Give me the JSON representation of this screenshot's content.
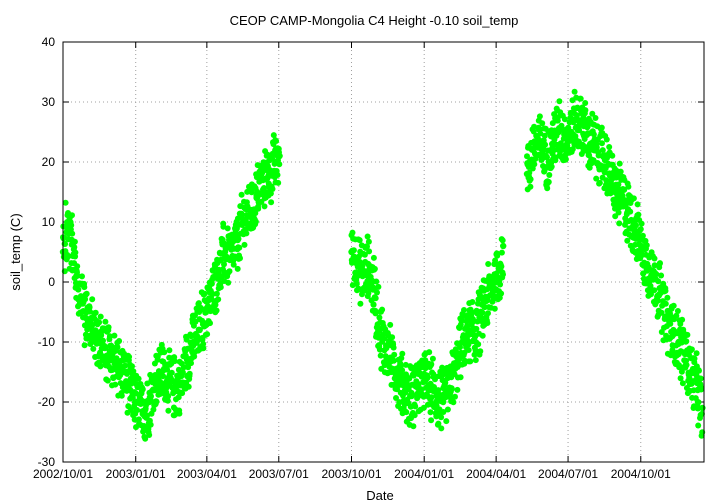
{
  "chart_data": {
    "type": "scatter",
    "title": "CEOP CAMP-Mongolia C4 Height -0.10 soil_temp",
    "xlabel": "Date",
    "ylabel": "soil_temp (C)",
    "xlim": [
      "2002-10-01",
      "2004-12-20"
    ],
    "ylim": [
      -30,
      40
    ],
    "yticks": [
      -30,
      -20,
      -10,
      0,
      10,
      20,
      30,
      40
    ],
    "xticks": [
      "2002/10/01",
      "2003/01/01",
      "2003/04/01",
      "2003/07/01",
      "2003/10/01",
      "2004/01/01",
      "2004/04/01",
      "2004/07/01",
      "2004/10/01"
    ],
    "grid": true,
    "color": "#00ff00",
    "series": [
      {
        "values": [
          [
            "2002-10-01",
            5
          ],
          [
            "2002-10-06",
            9
          ],
          [
            "2002-10-12",
            7
          ],
          [
            "2002-10-18",
            1
          ],
          [
            "2002-10-24",
            -3
          ],
          [
            "2002-10-30",
            -6
          ],
          [
            "2002-11-07",
            -8
          ],
          [
            "2002-11-15",
            -10
          ],
          [
            "2002-11-23",
            -11
          ],
          [
            "2002-12-01",
            -13
          ],
          [
            "2002-12-09",
            -14
          ],
          [
            "2002-12-17",
            -15
          ],
          [
            "2002-12-25",
            -18
          ],
          [
            "2003-01-02",
            -20
          ],
          [
            "2003-01-10",
            -22
          ],
          [
            "2003-01-18",
            -20
          ],
          [
            "2003-01-26",
            -17
          ],
          [
            "2003-02-03",
            -15
          ],
          [
            "2003-02-11",
            -16
          ],
          [
            "2003-02-19",
            -18
          ],
          [
            "2003-02-27",
            -17
          ],
          [
            "2003-03-07",
            -13
          ],
          [
            "2003-03-15",
            -10
          ],
          [
            "2003-03-23",
            -8
          ],
          [
            "2003-03-31",
            -5
          ],
          [
            "2003-04-08",
            -2
          ],
          [
            "2003-04-16",
            2
          ],
          [
            "2003-04-24",
            5
          ],
          [
            "2003-05-02",
            4
          ],
          [
            "2003-05-10",
            7
          ],
          [
            "2003-05-18",
            10
          ],
          [
            "2003-05-26",
            12
          ],
          [
            "2003-06-03",
            14
          ],
          [
            "2003-06-11",
            17
          ],
          [
            "2003-06-19",
            18
          ],
          [
            "2003-06-27",
            20
          ],
          [
            "2003-07-02",
            21
          ]
        ]
      },
      {
        "values": [
          [
            "2003-10-01",
            5
          ],
          [
            "2003-10-08",
            3
          ],
          [
            "2003-10-15",
            1
          ],
          [
            "2003-10-22",
            3
          ],
          [
            "2003-10-29",
            -1
          ],
          [
            "2003-11-06",
            -8
          ],
          [
            "2003-11-14",
            -11
          ],
          [
            "2003-11-22",
            -13
          ],
          [
            "2003-11-30",
            -16
          ],
          [
            "2003-12-08",
            -18
          ],
          [
            "2003-12-16",
            -19
          ],
          [
            "2003-12-24",
            -17
          ],
          [
            "2004-01-01",
            -16
          ],
          [
            "2004-01-09",
            -17
          ],
          [
            "2004-01-17",
            -19
          ],
          [
            "2004-01-25",
            -20
          ],
          [
            "2004-02-02",
            -18
          ],
          [
            "2004-02-10",
            -14
          ],
          [
            "2004-02-18",
            -10
          ],
          [
            "2004-02-26",
            -8
          ],
          [
            "2004-03-05",
            -9
          ],
          [
            "2004-03-13",
            -6
          ],
          [
            "2004-03-21",
            -3
          ],
          [
            "2004-03-29",
            0
          ],
          [
            "2004-04-06",
            2
          ],
          [
            "2004-04-10",
            6
          ]
        ]
      },
      {
        "values": [
          [
            "2004-05-10",
            18
          ],
          [
            "2004-05-18",
            22
          ],
          [
            "2004-05-26",
            23
          ],
          [
            "2004-06-03",
            21
          ],
          [
            "2004-06-11",
            23
          ],
          [
            "2004-06-19",
            25
          ],
          [
            "2004-06-27",
            24
          ],
          [
            "2004-07-05",
            25
          ],
          [
            "2004-07-13",
            27
          ],
          [
            "2004-07-21",
            26
          ],
          [
            "2004-07-29",
            23
          ],
          [
            "2004-08-06",
            22
          ],
          [
            "2004-08-14",
            21
          ],
          [
            "2004-08-22",
            18
          ],
          [
            "2004-08-30",
            15
          ],
          [
            "2004-09-07",
            14
          ],
          [
            "2004-09-15",
            12
          ],
          [
            "2004-09-23",
            10
          ],
          [
            "2004-10-01",
            6
          ],
          [
            "2004-10-09",
            3
          ],
          [
            "2004-10-17",
            1
          ],
          [
            "2004-10-25",
            -2
          ],
          [
            "2004-11-02",
            -6
          ],
          [
            "2004-11-10",
            -9
          ],
          [
            "2004-11-18",
            -10
          ],
          [
            "2004-11-26",
            -12
          ],
          [
            "2004-12-04",
            -15
          ],
          [
            "2004-12-12",
            -18
          ],
          [
            "2004-12-18",
            -21
          ]
        ]
      }
    ]
  }
}
